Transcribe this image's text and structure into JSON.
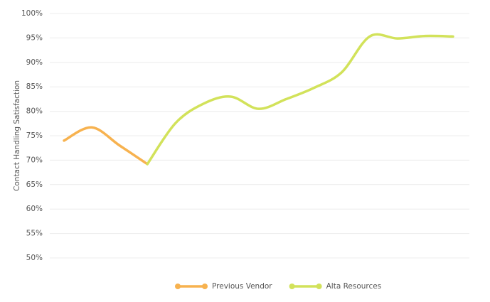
{
  "chart_data": {
    "type": "line",
    "y_label": "Contact Handling Satisfaction",
    "categories": [
      null,
      null,
      null,
      null,
      null,
      null,
      null,
      null,
      null,
      null,
      null,
      null,
      null,
      null,
      null
    ],
    "series": [
      {
        "name": "Previous Vendor",
        "color": "#f7b24f",
        "values": [
          74,
          76.7,
          73,
          69.2,
          null,
          null,
          null,
          null,
          null,
          null,
          null,
          null,
          null,
          null,
          null
        ]
      },
      {
        "name": "Alta Resources",
        "color": "#d2e25a",
        "values": [
          null,
          null,
          null,
          69.2,
          77.5,
          81.5,
          83,
          80.5,
          82.5,
          84.8,
          88,
          95.3,
          94.9,
          95.4,
          95.3
        ]
      }
    ],
    "ylim": [
      50,
      100
    ],
    "yticks": [
      {
        "value": 50,
        "label": "50%"
      },
      {
        "value": 55,
        "label": "55%"
      },
      {
        "value": 60,
        "label": "60%"
      },
      {
        "value": 65,
        "label": "65%"
      },
      {
        "value": 70,
        "label": "70%"
      },
      {
        "value": 75,
        "label": "75%"
      },
      {
        "value": 80,
        "label": "80%"
      },
      {
        "value": 85,
        "label": "85%"
      },
      {
        "value": 90,
        "label": "90%"
      },
      {
        "value": 95,
        "label": "95%"
      },
      {
        "value": 100,
        "label": "100%"
      }
    ],
    "grid": true,
    "legend": "bottom"
  }
}
